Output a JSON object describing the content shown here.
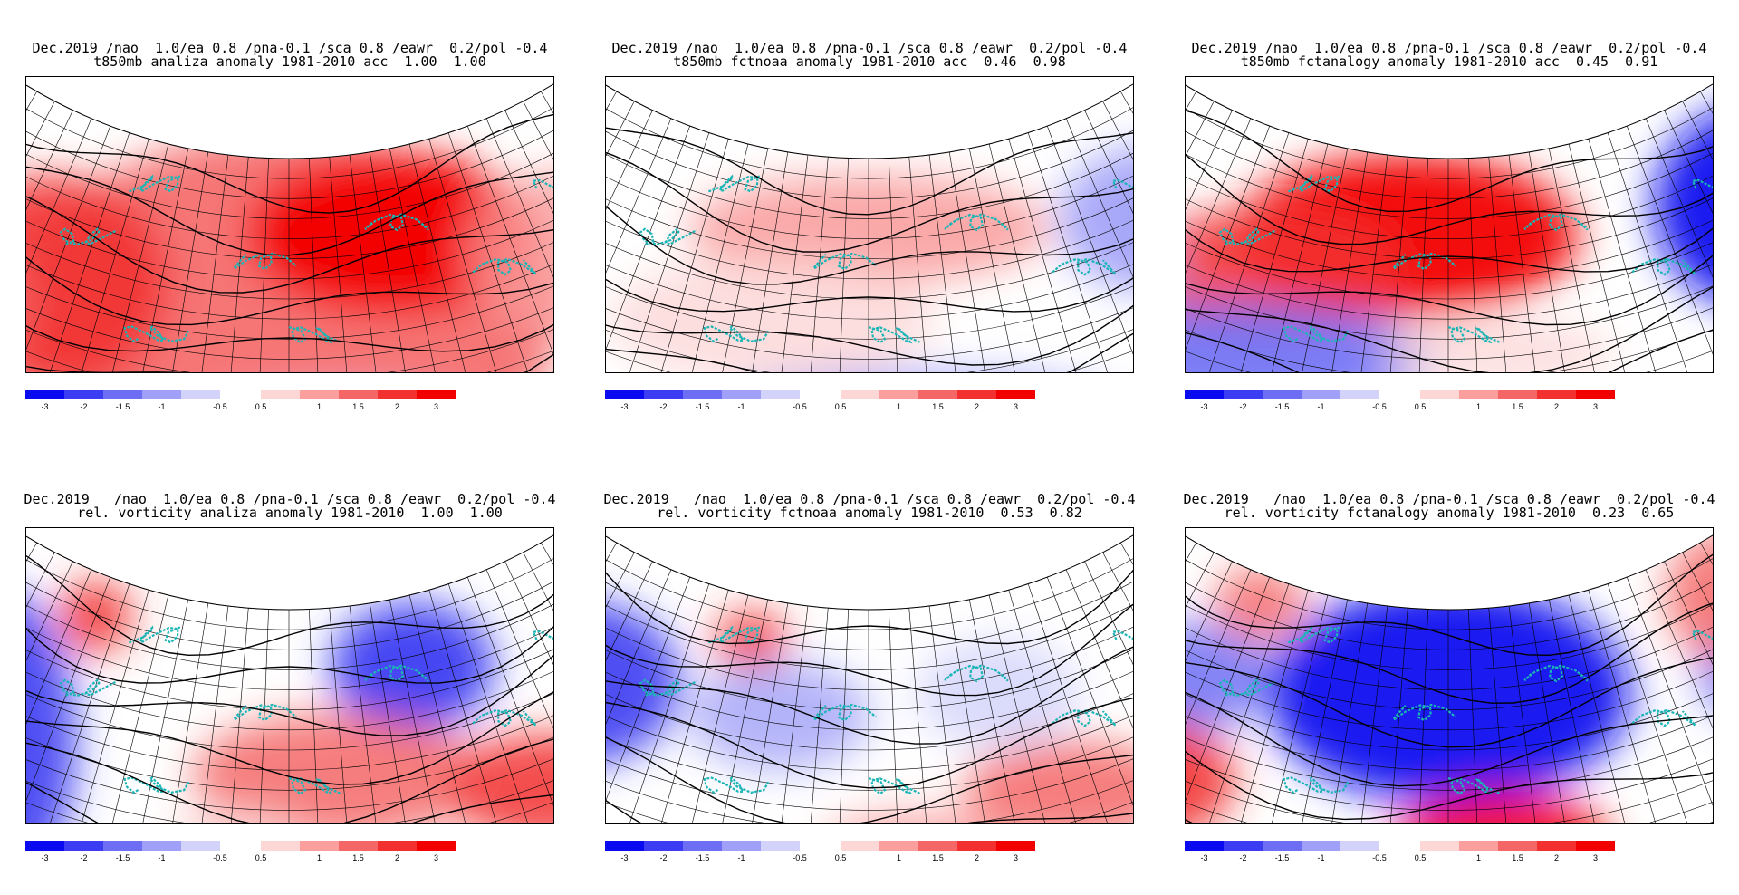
{
  "panels": [
    {
      "line1": "Dec.2019 /nao  1.0/ea 0.8 /pna-0.1 /sca 0.8 /eawr  0.2/pol -0.4",
      "line2": "t850mb analiza anomaly 1981-2010 acc  1.00  1.00",
      "field": "t850mb",
      "source": "analiza",
      "acc": [
        1.0,
        1.0
      ],
      "pattern": "warm-dominant"
    },
    {
      "line1": "Dec.2019 /nao  1.0/ea 0.8 /pna-0.1 /sca 0.8 /eawr  0.2/pol -0.4",
      "line2": "t850mb fctnoaa anomaly 1981-2010 acc  0.46  0.98",
      "field": "t850mb",
      "source": "fctnoaa",
      "acc": [
        0.46,
        0.98
      ],
      "pattern": "weak-warm-north-cold-east"
    },
    {
      "line1": "Dec.2019 /nao  1.0/ea 0.8 /pna-0.1 /sca 0.8 /eawr  0.2/pol -0.4",
      "line2": "t850mb fctanalogy anomaly 1981-2010 acc  0.45  0.91",
      "field": "t850mb",
      "source": "fctanalogy",
      "acc": [
        0.45,
        0.91
      ],
      "pattern": "warm-center-cold-east-south"
    },
    {
      "line1": "Dec.2019   /nao  1.0/ea 0.8 /pna-0.1 /sca 0.8 /eawr  0.2/pol -0.4",
      "line2": "rel. vorticity analiza anomaly 1981-2010  1.00  1.00",
      "field": "rel. vorticity",
      "source": "analiza",
      "acc": [
        1.0,
        1.0
      ],
      "pattern": "cyclonic-west-and-northeast"
    },
    {
      "line1": "Dec.2019   /nao  1.0/ea 0.8 /pna-0.1 /sca 0.8 /eawr  0.2/pol -0.4",
      "line2": "rel. vorticity fctnoaa anomaly 1981-2010  0.53  0.82",
      "field": "rel. vorticity",
      "source": "fctnoaa",
      "acc": [
        0.53,
        0.82
      ],
      "pattern": "cyclonic-west"
    },
    {
      "line1": "Dec.2019   /nao  1.0/ea 0.8 /pna-0.1 /sca 0.8 /eawr  0.2/pol -0.4",
      "line2": "rel. vorticity fctanalogy anomaly 1981-2010  0.23  0.65",
      "field": "rel. vorticity",
      "source": "fctanalogy",
      "acc": [
        0.23,
        0.65
      ],
      "pattern": "cyclonic-center-anticyclonic-south"
    }
  ],
  "colorbar": {
    "ticks": [
      "-3",
      "-2",
      "-1.5",
      "-1",
      "-0.5",
      "0.5",
      "1",
      "1.5",
      "2",
      "3"
    ],
    "neg_colors": [
      "#0a0af0",
      "#3c3cf2",
      "#6e6ef5",
      "#a0a0f8",
      "#d2d2fb"
    ],
    "pos_colors": [
      "#fdd6d6",
      "#fa9e9e",
      "#f56666",
      "#f23030",
      "#f20000"
    ]
  },
  "accent": {
    "coast": "#1bb5b5",
    "grid": "#000000"
  }
}
